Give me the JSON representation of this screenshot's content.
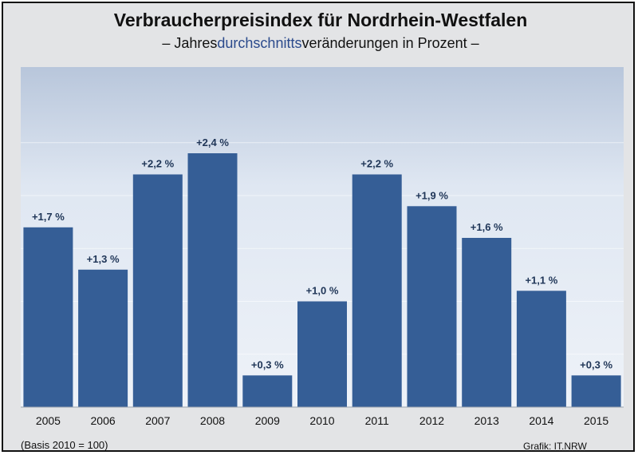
{
  "header": {
    "title": "Verbraucherpreisindex für Nordrhein-Westfalen",
    "subtitle_prefix": "– Jahres",
    "subtitle_highlight": "durchschnitts",
    "subtitle_suffix": "veränderungen in Prozent –"
  },
  "footer": {
    "basis": "(Basis 2010 = 100)",
    "credit": "Grafik: IT.NRW"
  },
  "colors": {
    "bar": "#355e96",
    "highlight_text": "#2b4a8c",
    "plot_background": "#dfe7f2",
    "label_text": "#1f3557"
  },
  "chart_data": {
    "type": "bar",
    "categories": [
      "2005",
      "2006",
      "2007",
      "2008",
      "2009",
      "2010",
      "2011",
      "2012",
      "2013",
      "2014",
      "2015"
    ],
    "values": [
      1.7,
      1.3,
      2.2,
      2.4,
      0.3,
      1.0,
      2.2,
      1.9,
      1.6,
      1.1,
      0.3
    ],
    "labels": [
      "+1,7 %",
      "+1,3 %",
      "+2,2 %",
      "+2,4 %",
      "+0,3 %",
      "+1,0 %",
      "+2,2 %",
      "+1,9 %",
      "+1,6 %",
      "+1,1 %",
      "+0,3 %"
    ],
    "ylim": [
      0,
      2.8
    ],
    "grid": true
  }
}
